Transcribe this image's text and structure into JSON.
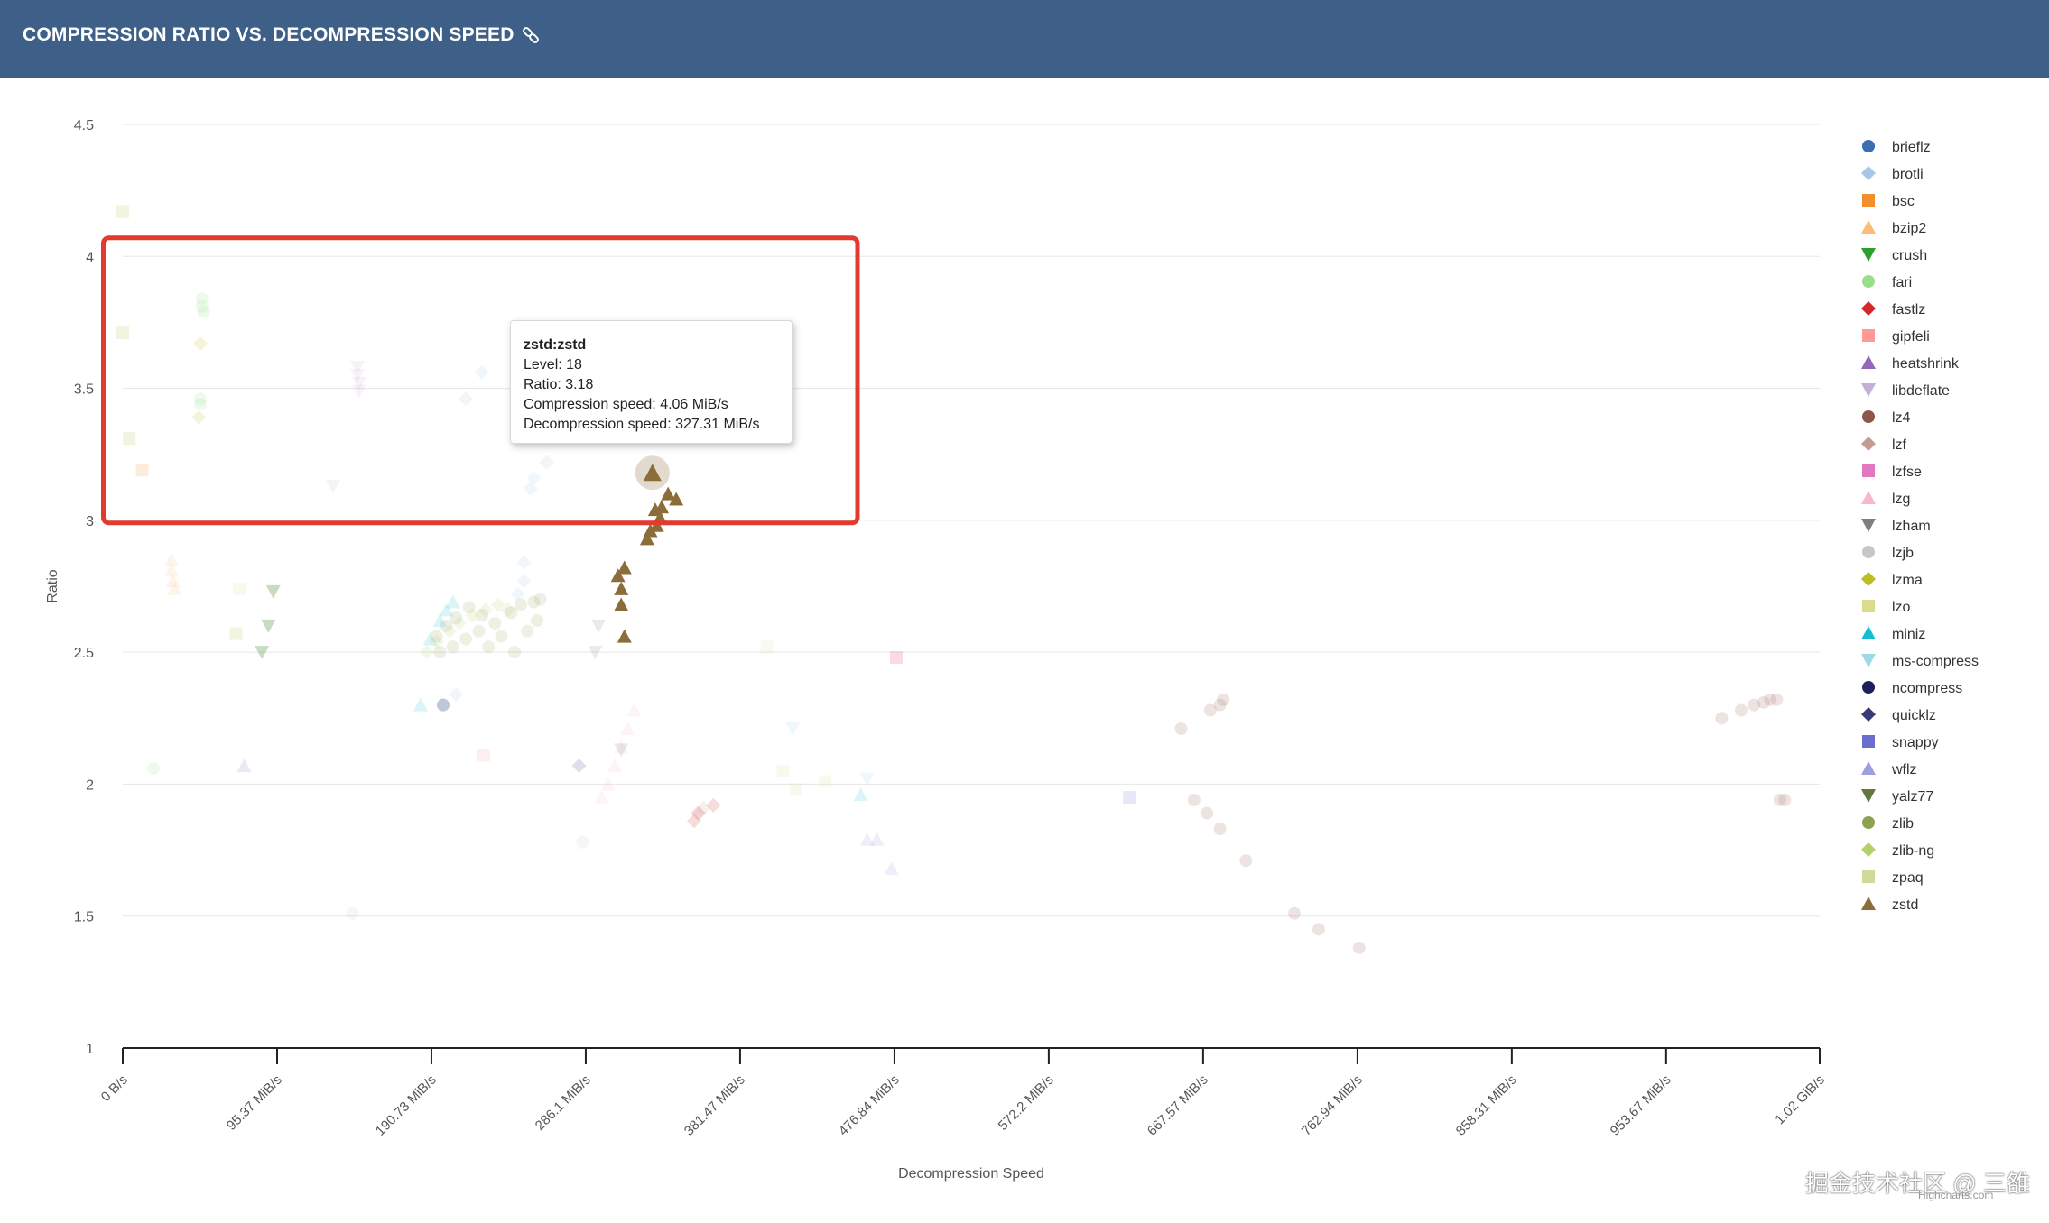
{
  "header": {
    "title": "COMPRESSION RATIO VS. DECOMPRESSION SPEED",
    "icon": "link-icon",
    "bg_color": "#3e5f87"
  },
  "tooltip": {
    "title": "zstd:zstd",
    "level": "Level: 18",
    "ratio": "Ratio: 3.18",
    "compression_speed": "Compression speed: 4.06 MiB/s",
    "decompression_speed": "Decompression speed: 327.31 MiB/s"
  },
  "watermark": "掘金技术社区 @ 三雒",
  "credits": "Highcharts.com",
  "highlight_color": "#e23a2e",
  "chart_data": {
    "type": "scatter",
    "xlabel": "Decompression Speed",
    "ylabel": "Ratio",
    "xlim": [
      0,
      1100
    ],
    "ylim": [
      1,
      4.5
    ],
    "x_unit": "MiB/s",
    "x_ticks": [
      {
        "v": 0,
        "label": "0 B/s"
      },
      {
        "v": 95.37,
        "label": "95.37 MiB/s"
      },
      {
        "v": 190.73,
        "label": "190.73 MiB/s"
      },
      {
        "v": 286.1,
        "label": "286.1 MiB/s"
      },
      {
        "v": 381.47,
        "label": "381.47 MiB/s"
      },
      {
        "v": 476.84,
        "label": "476.84 MiB/s"
      },
      {
        "v": 572.2,
        "label": "572.2 MiB/s"
      },
      {
        "v": 667.57,
        "label": "667.57 MiB/s"
      },
      {
        "v": 762.94,
        "label": "762.94 MiB/s"
      },
      {
        "v": 858.31,
        "label": "858.31 MiB/s"
      },
      {
        "v": 953.67,
        "label": "953.67 MiB/s"
      },
      {
        "v": 1048.58,
        "label": "1.02 GiB/s"
      }
    ],
    "y_ticks": [
      1,
      1.5,
      2,
      2.5,
      3,
      3.5,
      4,
      4.5
    ],
    "grid": true,
    "legend_position": "right",
    "highlight_box": {
      "x": [
        -12,
        454
      ],
      "y": [
        2.99,
        4.07
      ]
    },
    "hover_point": {
      "series": "zstd",
      "x": 327.31,
      "y": 3.18
    },
    "series": [
      {
        "name": "brieflz",
        "symbol": "circle",
        "color": "#3a6fb0",
        "faded": true,
        "points": [
          [
            198,
            2.3
          ]
        ]
      },
      {
        "name": "brotli",
        "symbol": "diamond",
        "color": "#a9c5e8",
        "faded": true,
        "points": [
          [
            212,
            3.46
          ],
          [
            222,
            3.56
          ],
          [
            252,
            3.12
          ],
          [
            254,
            3.16
          ],
          [
            262,
            3.22
          ],
          [
            248,
            2.77
          ],
          [
            248,
            2.84
          ],
          [
            244,
            2.72
          ],
          [
            206,
            2.34
          ]
        ]
      },
      {
        "name": "bsc",
        "symbol": "square",
        "color": "#f28e2b",
        "faded": true,
        "points": [
          [
            12,
            3.19
          ]
        ]
      },
      {
        "name": "bzip2",
        "symbol": "triangle",
        "color": "#ffbb78",
        "faded": true,
        "points": [
          [
            30,
            2.85
          ],
          [
            30,
            2.81
          ],
          [
            31,
            2.77
          ],
          [
            32,
            2.74
          ]
        ]
      },
      {
        "name": "crush",
        "symbol": "triangle-down",
        "color": "#2ca02c",
        "faded": true,
        "points": [
          [
            93,
            2.73
          ],
          [
            90,
            2.6
          ],
          [
            86,
            2.5
          ]
        ]
      },
      {
        "name": "fari",
        "symbol": "circle",
        "color": "#98df8a",
        "faded": true,
        "points": [
          [
            19,
            2.06
          ],
          [
            49,
            3.84
          ],
          [
            49,
            3.81
          ],
          [
            50,
            3.79
          ],
          [
            48,
            3.46
          ],
          [
            48,
            3.44
          ]
        ]
      },
      {
        "name": "fastlz",
        "symbol": "diamond",
        "color": "#d62728",
        "faded": true,
        "points": [
          [
            353,
            1.86
          ],
          [
            356,
            1.89
          ],
          [
            365,
            1.92
          ]
        ]
      },
      {
        "name": "gipfeli",
        "symbol": "square",
        "color": "#ff9896",
        "faded": true,
        "points": [
          [
            223,
            2.11
          ],
          [
            478,
            2.48
          ]
        ]
      },
      {
        "name": "heatshrink",
        "symbol": "triangle",
        "color": "#9467bd",
        "faded": true,
        "points": [
          [
            75,
            2.07
          ]
        ]
      },
      {
        "name": "libdeflate",
        "symbol": "triangle-down",
        "color": "#c5b0d5",
        "faded": true,
        "points": [
          [
            145,
            3.58
          ],
          [
            145,
            3.55
          ],
          [
            146,
            3.52
          ],
          [
            146,
            3.49
          ],
          [
            130,
            3.13
          ]
        ]
      },
      {
        "name": "lz4",
        "symbol": "circle",
        "color": "#8c564b",
        "faded": true,
        "points": [
          [
            680,
            2.32
          ],
          [
            678,
            2.3
          ],
          [
            672,
            2.28
          ],
          [
            654,
            2.21
          ],
          [
            662,
            1.94
          ],
          [
            670,
            1.89
          ],
          [
            678,
            1.83
          ],
          [
            694,
            1.71
          ],
          [
            724,
            1.51
          ],
          [
            739,
            1.45
          ],
          [
            764,
            1.38
          ],
          [
            1022,
            2.32
          ],
          [
            1018,
            2.32
          ],
          [
            1014,
            2.31
          ],
          [
            1008,
            2.3
          ],
          [
            1000,
            2.28
          ],
          [
            988,
            2.25
          ],
          [
            1024,
            1.94
          ],
          [
            1027,
            1.94
          ]
        ]
      },
      {
        "name": "lzf",
        "symbol": "diamond",
        "color": "#c49c94",
        "faded": true,
        "points": [
          [
            355,
            1.89
          ],
          [
            359,
            1.91
          ]
        ]
      },
      {
        "name": "lzfse",
        "symbol": "square",
        "color": "#e377c2",
        "faded": true,
        "points": [
          [
            478,
            2.48
          ]
        ]
      },
      {
        "name": "lzg",
        "symbol": "triangle",
        "color": "#f7b6d2",
        "faded": true,
        "points": [
          [
            296,
            1.95
          ],
          [
            300,
            2.0
          ],
          [
            304,
            2.07
          ],
          [
            308,
            2.14
          ],
          [
            312,
            2.21
          ],
          [
            316,
            2.28
          ]
        ]
      },
      {
        "name": "lzham",
        "symbol": "triangle-down",
        "color": "#7f7f7f",
        "faded": true,
        "points": [
          [
            308,
            2.13
          ],
          [
            294,
            2.6
          ],
          [
            292,
            2.5
          ]
        ]
      },
      {
        "name": "lzjb",
        "symbol": "circle",
        "color": "#c7c7c7",
        "faded": true,
        "points": [
          [
            142,
            1.51
          ],
          [
            284,
            1.78
          ]
        ]
      },
      {
        "name": "lzma",
        "symbol": "diamond",
        "color": "#bcbd22",
        "faded": true,
        "points": [
          [
            48,
            3.67
          ],
          [
            47,
            3.39
          ]
        ]
      },
      {
        "name": "lzo",
        "symbol": "square",
        "color": "#dbdb8d",
        "faded": true,
        "points": [
          [
            0,
            4.17
          ],
          [
            0,
            3.71
          ],
          [
            4,
            3.31
          ],
          [
            70,
            2.57
          ],
          [
            72,
            2.74
          ],
          [
            398,
            2.52
          ],
          [
            408,
            2.05
          ],
          [
            416,
            1.98
          ],
          [
            434,
            2.01
          ]
        ]
      },
      {
        "name": "miniz",
        "symbol": "triangle",
        "color": "#17becf",
        "faded": true,
        "points": [
          [
            184,
            2.3
          ],
          [
            190,
            2.55
          ],
          [
            196,
            2.62
          ],
          [
            200,
            2.66
          ],
          [
            204,
            2.69
          ],
          [
            456,
            1.96
          ]
        ]
      },
      {
        "name": "ms-compress",
        "symbol": "triangle-down",
        "color": "#9edae5",
        "faded": true,
        "points": [
          [
            414,
            2.21
          ],
          [
            460,
            2.02
          ]
        ]
      },
      {
        "name": "ncompress",
        "symbol": "circle",
        "color": "#1f1f5f",
        "faded": true,
        "points": [
          [
            198,
            2.3
          ]
        ]
      },
      {
        "name": "quicklz",
        "symbol": "diamond",
        "color": "#393b79",
        "faded": true,
        "points": [
          [
            282,
            2.07
          ]
        ]
      },
      {
        "name": "snappy",
        "symbol": "square",
        "color": "#6b6ecf",
        "faded": true,
        "points": [
          [
            622,
            1.95
          ]
        ]
      },
      {
        "name": "wflz",
        "symbol": "triangle",
        "color": "#9c9ede",
        "faded": true,
        "points": [
          [
            460,
            1.79
          ],
          [
            466,
            1.79
          ],
          [
            475,
            1.68
          ]
        ]
      },
      {
        "name": "yalz77",
        "symbol": "triangle-down",
        "color": "#637939",
        "faded": true,
        "points": [
          [
            93,
            2.73
          ],
          [
            90,
            2.6
          ],
          [
            86,
            2.5
          ]
        ]
      },
      {
        "name": "zlib",
        "symbol": "circle",
        "color": "#8ca252",
        "faded": true,
        "points": [
          [
            194,
            2.56
          ],
          [
            200,
            2.6
          ],
          [
            206,
            2.63
          ],
          [
            214,
            2.67
          ],
          [
            222,
            2.64
          ],
          [
            230,
            2.61
          ],
          [
            240,
            2.65
          ],
          [
            246,
            2.68
          ],
          [
            254,
            2.69
          ],
          [
            258,
            2.7
          ],
          [
            196,
            2.5
          ],
          [
            204,
            2.52
          ],
          [
            212,
            2.55
          ],
          [
            220,
            2.58
          ],
          [
            226,
            2.52
          ],
          [
            234,
            2.56
          ],
          [
            242,
            2.5
          ],
          [
            250,
            2.58
          ],
          [
            256,
            2.62
          ]
        ]
      },
      {
        "name": "zlib-ng",
        "symbol": "diamond",
        "color": "#b5cf6b",
        "faded": true,
        "points": [
          [
            188,
            2.5
          ],
          [
            194,
            2.54
          ],
          [
            202,
            2.58
          ],
          [
            208,
            2.61
          ],
          [
            216,
            2.64
          ],
          [
            224,
            2.66
          ],
          [
            232,
            2.68
          ],
          [
            238,
            2.66
          ]
        ]
      },
      {
        "name": "zpaq",
        "symbol": "square",
        "color": "#cedb9c",
        "faded": true,
        "points": [
          [
            0,
            4.17
          ],
          [
            0,
            3.71
          ],
          [
            4,
            3.31
          ],
          [
            70,
            2.57
          ]
        ]
      },
      {
        "name": "zstd",
        "symbol": "triangle",
        "color": "#8b6d3a",
        "faded": false,
        "points": [
          [
            327.31,
            3.18
          ],
          [
            337,
            3.1
          ],
          [
            342,
            3.08
          ],
          [
            333,
            3.05
          ],
          [
            329,
            3.04
          ],
          [
            332,
            3.01
          ],
          [
            330,
            2.98
          ],
          [
            326,
            2.96
          ],
          [
            324,
            2.93
          ],
          [
            310,
            2.82
          ],
          [
            306,
            2.79
          ],
          [
            308,
            2.74
          ],
          [
            308,
            2.68
          ],
          [
            310,
            2.56
          ]
        ]
      }
    ]
  }
}
